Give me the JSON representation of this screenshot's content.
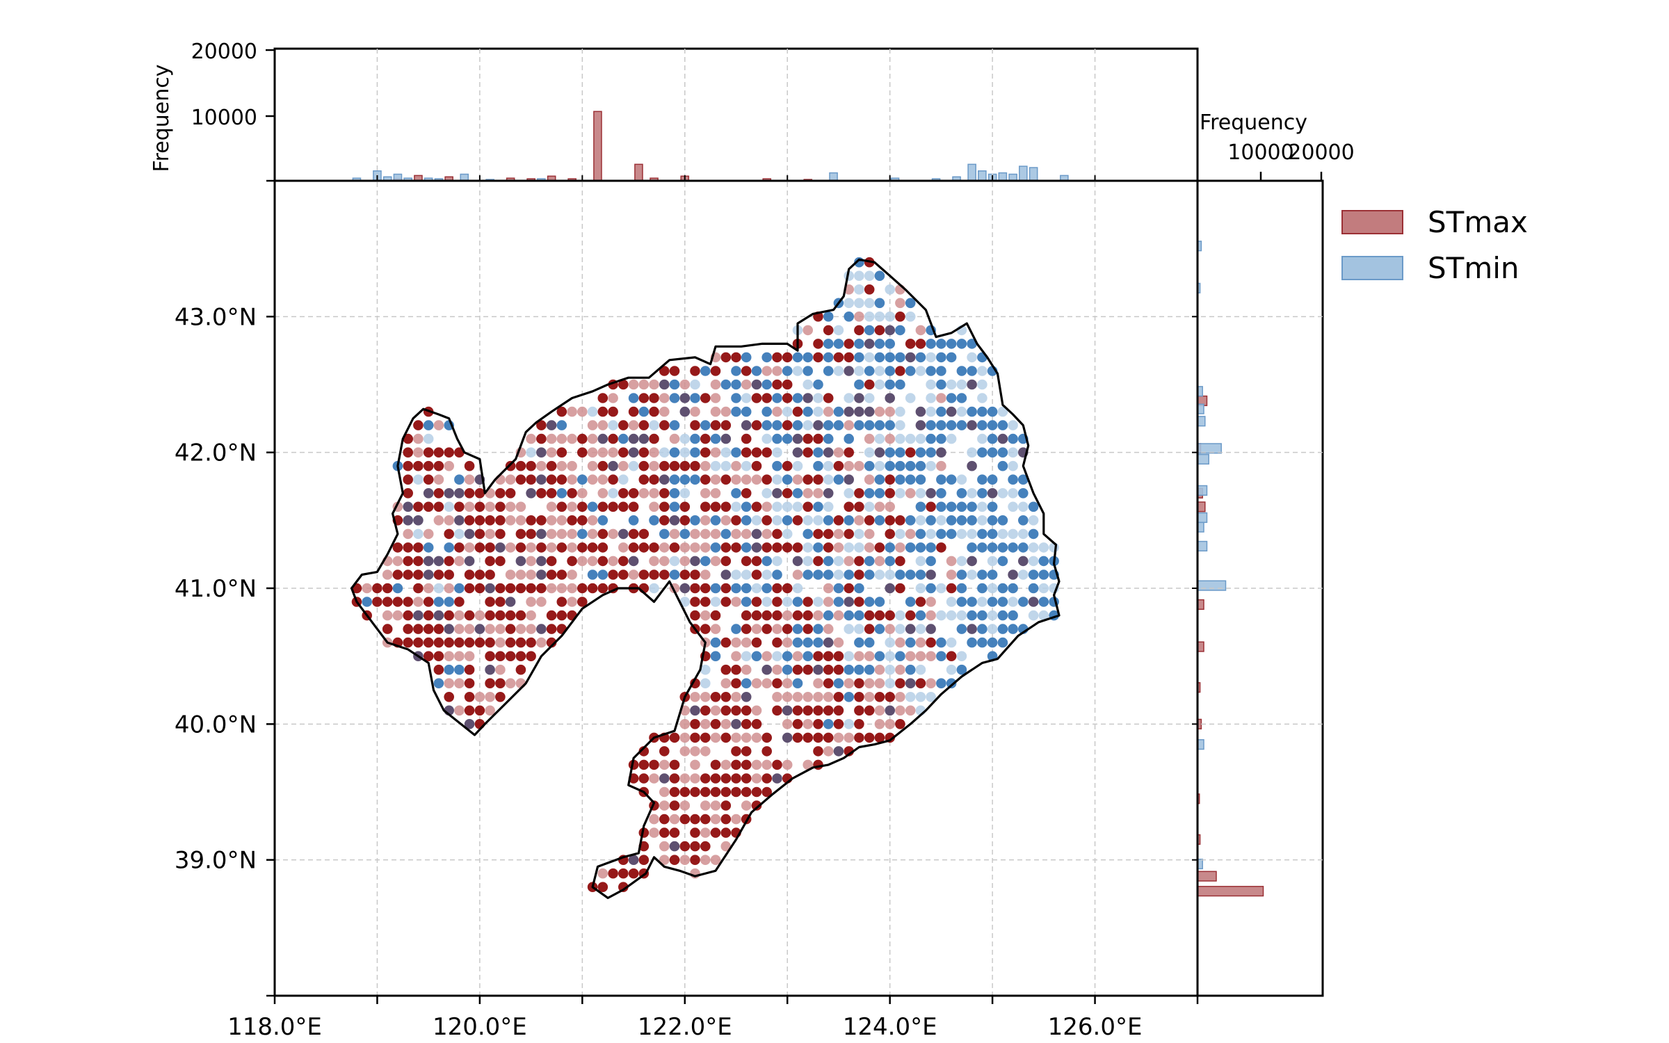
{
  "chart_data": [
    {
      "panel": "map",
      "type": "scatter",
      "x_ticks": [
        "118.0°E",
        "120.0°E",
        "122.0°E",
        "124.0°E",
        "126.0°E"
      ],
      "x_tick_values": [
        118,
        120,
        122,
        124,
        126
      ],
      "y_ticks": [
        "39.0°N",
        "40.0°N",
        "41.0°N",
        "42.0°N",
        "43.0°N"
      ],
      "y_tick_values": [
        39,
        40,
        41,
        42,
        43
      ],
      "xlim": [
        118,
        127
      ],
      "ylim": [
        38,
        44
      ],
      "grid": true,
      "grid_spacing_deg": 1,
      "boundary": "Liaoning province outline",
      "series": [
        {
          "name": "STmax",
          "color": "#8b0000"
        },
        {
          "name": "STmin",
          "color": "#3b7ab8"
        }
      ]
    },
    {
      "panel": "top-histogram",
      "type": "bar",
      "ylabel": "Frequency",
      "y_ticks": [
        "10000",
        "20000"
      ],
      "y_tick_values": [
        10000,
        20000
      ],
      "ylim": [
        0,
        20000
      ],
      "x_axis": "longitude",
      "series": [
        {
          "name": "STmax",
          "bins": [
            [
              119.2,
              300
            ],
            [
              119.4,
              800
            ],
            [
              119.7,
              600
            ],
            [
              120.3,
              400
            ],
            [
              120.5,
              300
            ],
            [
              120.7,
              700
            ],
            [
              120.9,
              300
            ],
            [
              121.15,
              10500
            ],
            [
              121.55,
              2500
            ],
            [
              121.7,
              400
            ],
            [
              122.0,
              700
            ],
            [
              122.8,
              300
            ],
            [
              123.2,
              200
            ]
          ]
        },
        {
          "name": "STmin",
          "bins": [
            [
              118.8,
              400
            ],
            [
              119.0,
              1500
            ],
            [
              119.1,
              600
            ],
            [
              119.2,
              1000
            ],
            [
              119.3,
              400
            ],
            [
              119.5,
              400
            ],
            [
              119.6,
              300
            ],
            [
              119.85,
              1000
            ],
            [
              120.1,
              200
            ],
            [
              120.6,
              300
            ],
            [
              123.45,
              1200
            ],
            [
              124.05,
              400
            ],
            [
              124.45,
              300
            ],
            [
              124.65,
              600
            ],
            [
              124.8,
              2500
            ],
            [
              124.9,
              1500
            ],
            [
              125.0,
              1000
            ],
            [
              125.1,
              1200
            ],
            [
              125.2,
              1000
            ],
            [
              125.3,
              2200
            ],
            [
              125.4,
              2000
            ],
            [
              125.7,
              800
            ]
          ]
        }
      ]
    },
    {
      "panel": "right-histogram",
      "type": "bar",
      "xlabel": "Frequency",
      "x_ticks": [
        "10000",
        "20000"
      ],
      "x_tick_values": [
        10000,
        20000
      ],
      "xlim": [
        0,
        20000
      ],
      "y_axis": "latitude",
      "series": [
        {
          "name": "STmax",
          "bins": [
            [
              38.77,
              10500
            ],
            [
              38.88,
              3000
            ],
            [
              39.15,
              400
            ],
            [
              39.45,
              300
            ],
            [
              40.0,
              600
            ],
            [
              40.27,
              400
            ],
            [
              40.57,
              1000
            ],
            [
              40.88,
              1000
            ],
            [
              41.6,
              1200
            ],
            [
              41.7,
              800
            ],
            [
              42.38,
              1500
            ],
            [
              42.03,
              500
            ]
          ]
        },
        {
          "name": "STmin",
          "bins": [
            [
              38.97,
              800
            ],
            [
              39.85,
              1000
            ],
            [
              41.02,
              4500
            ],
            [
              41.31,
              1500
            ],
            [
              41.45,
              1000
            ],
            [
              41.52,
              1500
            ],
            [
              41.72,
              1500
            ],
            [
              41.95,
              1800
            ],
            [
              42.03,
              3800
            ],
            [
              42.23,
              1200
            ],
            [
              42.32,
              1000
            ],
            [
              42.45,
              800
            ],
            [
              43.21,
              400
            ],
            [
              43.52,
              600
            ]
          ]
        }
      ]
    }
  ],
  "legend": {
    "position": "upper right outside",
    "items": [
      {
        "label": "STmax",
        "color": "#c27c7e",
        "edge": "#9b3035"
      },
      {
        "label": "STmin",
        "color": "#a3c3e0",
        "edge": "#6b9ac8"
      }
    ]
  },
  "colors": {
    "stmax_dark": "#8b0000",
    "stmax_light": "#d08f90",
    "stmin_dark": "#3b7ab8",
    "stmin_light": "#b5cfe6",
    "mixed": "#5e5070",
    "grid": "#c8c8c8"
  }
}
